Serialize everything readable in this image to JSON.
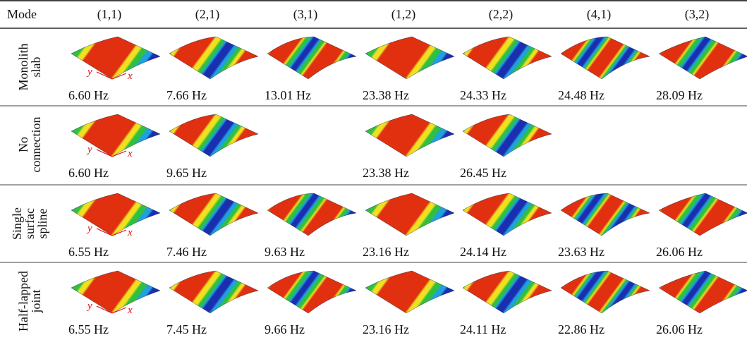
{
  "header": {
    "label": "Mode",
    "modes": [
      "(1,1)",
      "(2,1)",
      "(3,1)",
      "(1,2)",
      "(2,2)",
      "(4,1)",
      "(3,2)"
    ]
  },
  "rows": [
    {
      "label_lines": [
        "Monolith",
        "slab"
      ],
      "frequencies": [
        "6.60 Hz",
        "7.66 Hz",
        "13.01 Hz",
        "23.38 Hz",
        "24.33 Hz",
        "24.48 Hz",
        "28.09 Hz"
      ]
    },
    {
      "label_lines": [
        "No",
        "connection"
      ],
      "frequencies": [
        "6.60 Hz",
        "9.65 Hz",
        null,
        "23.38 Hz",
        "26.45 Hz",
        null,
        null
      ]
    },
    {
      "label_lines": [
        "Single",
        "surfac",
        "spline"
      ],
      "frequencies": [
        "6.55 Hz",
        "7.46 Hz",
        "9.63 Hz",
        "23.16 Hz",
        "24.14 Hz",
        "23.63 Hz",
        "26.06 Hz"
      ]
    },
    {
      "label_lines": [
        "Half-lapped",
        "joint"
      ],
      "frequencies": [
        "6.55 Hz",
        "7.45 Hz",
        "9.66 Hz",
        "23.16 Hz",
        "24.11 Hz",
        "22.86 Hz",
        "26.06 Hz"
      ]
    }
  ],
  "axis_labels": {
    "x": "x",
    "y": "y"
  }
}
